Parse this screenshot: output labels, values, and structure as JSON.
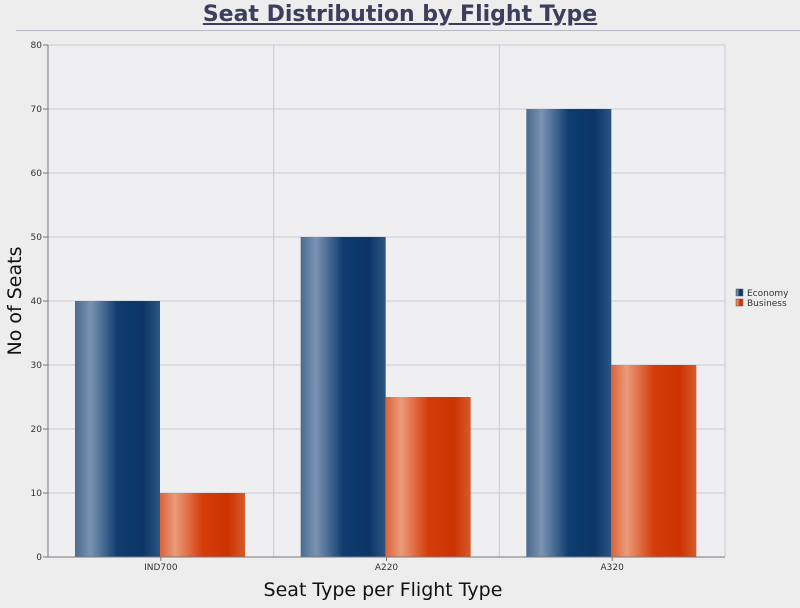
{
  "chart_data": {
    "type": "bar",
    "title": "Seat Distribution by Flight Type",
    "xlabel": "Seat Type per Flight Type",
    "ylabel": "No of Seats",
    "categories": [
      "IND700",
      "A220",
      "A320"
    ],
    "series": [
      {
        "name": "Economy",
        "values": [
          40,
          50,
          70
        ],
        "color": "#0d3a6b"
      },
      {
        "name": "Business",
        "values": [
          10,
          25,
          30
        ],
        "color": "#cc3300"
      }
    ],
    "ylim": [
      0,
      80
    ],
    "yticks": [
      0,
      10,
      20,
      30,
      40,
      50,
      60,
      70,
      80
    ],
    "grid": true,
    "legend_position": "right"
  }
}
